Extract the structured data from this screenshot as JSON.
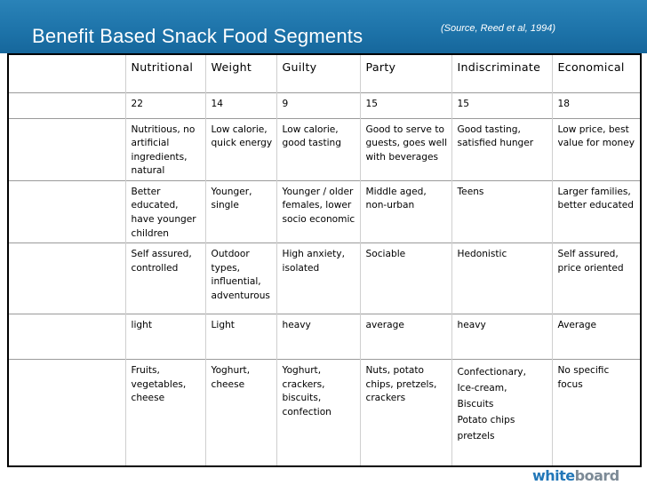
{
  "slide": {
    "title": "Benefit Based Snack Food Segments",
    "source": "(Source, Reed et al, 1994)",
    "logo": {
      "part1": "white",
      "part2": "board"
    }
  },
  "table": {
    "headers": [
      "Nutritional",
      "Weight",
      "Guilty",
      "Party",
      "Indiscriminate",
      "Economical"
    ],
    "rows": [
      [
        "22",
        "14",
        "9",
        "15",
        "15",
        "18"
      ],
      [
        "Nutritious, no artificial ingredients, natural",
        "Low calorie, quick energy",
        "Low calorie, good tasting",
        "Good to serve to guests, goes well with beverages",
        "Good tasting, satisfied hunger",
        "Low price, best value for money"
      ],
      [
        "Better educated, have younger children",
        "Younger, single",
        "Younger / older females, lower socio economic",
        "Middle aged, non-urban",
        "Teens",
        "Larger families, better educated"
      ],
      [
        "Self assured, controlled",
        "Outdoor types, influential, adventurous",
        "High anxiety, isolated",
        "Sociable",
        "Hedonistic",
        "Self assured, price oriented"
      ],
      [
        "light",
        "Light",
        "heavy",
        "average",
        "heavy",
        "Average"
      ],
      [
        "Fruits, vegetables, cheese",
        "Yoghurt, cheese",
        "Yoghurt, crackers, biscuits, confection",
        "Nuts, potato chips, pretzels, crackers",
        [
          "Confectionary,",
          "Ice-cream,",
          "Biscuits",
          "Potato chips",
          "pretzels"
        ],
        "No specific focus"
      ]
    ]
  }
}
